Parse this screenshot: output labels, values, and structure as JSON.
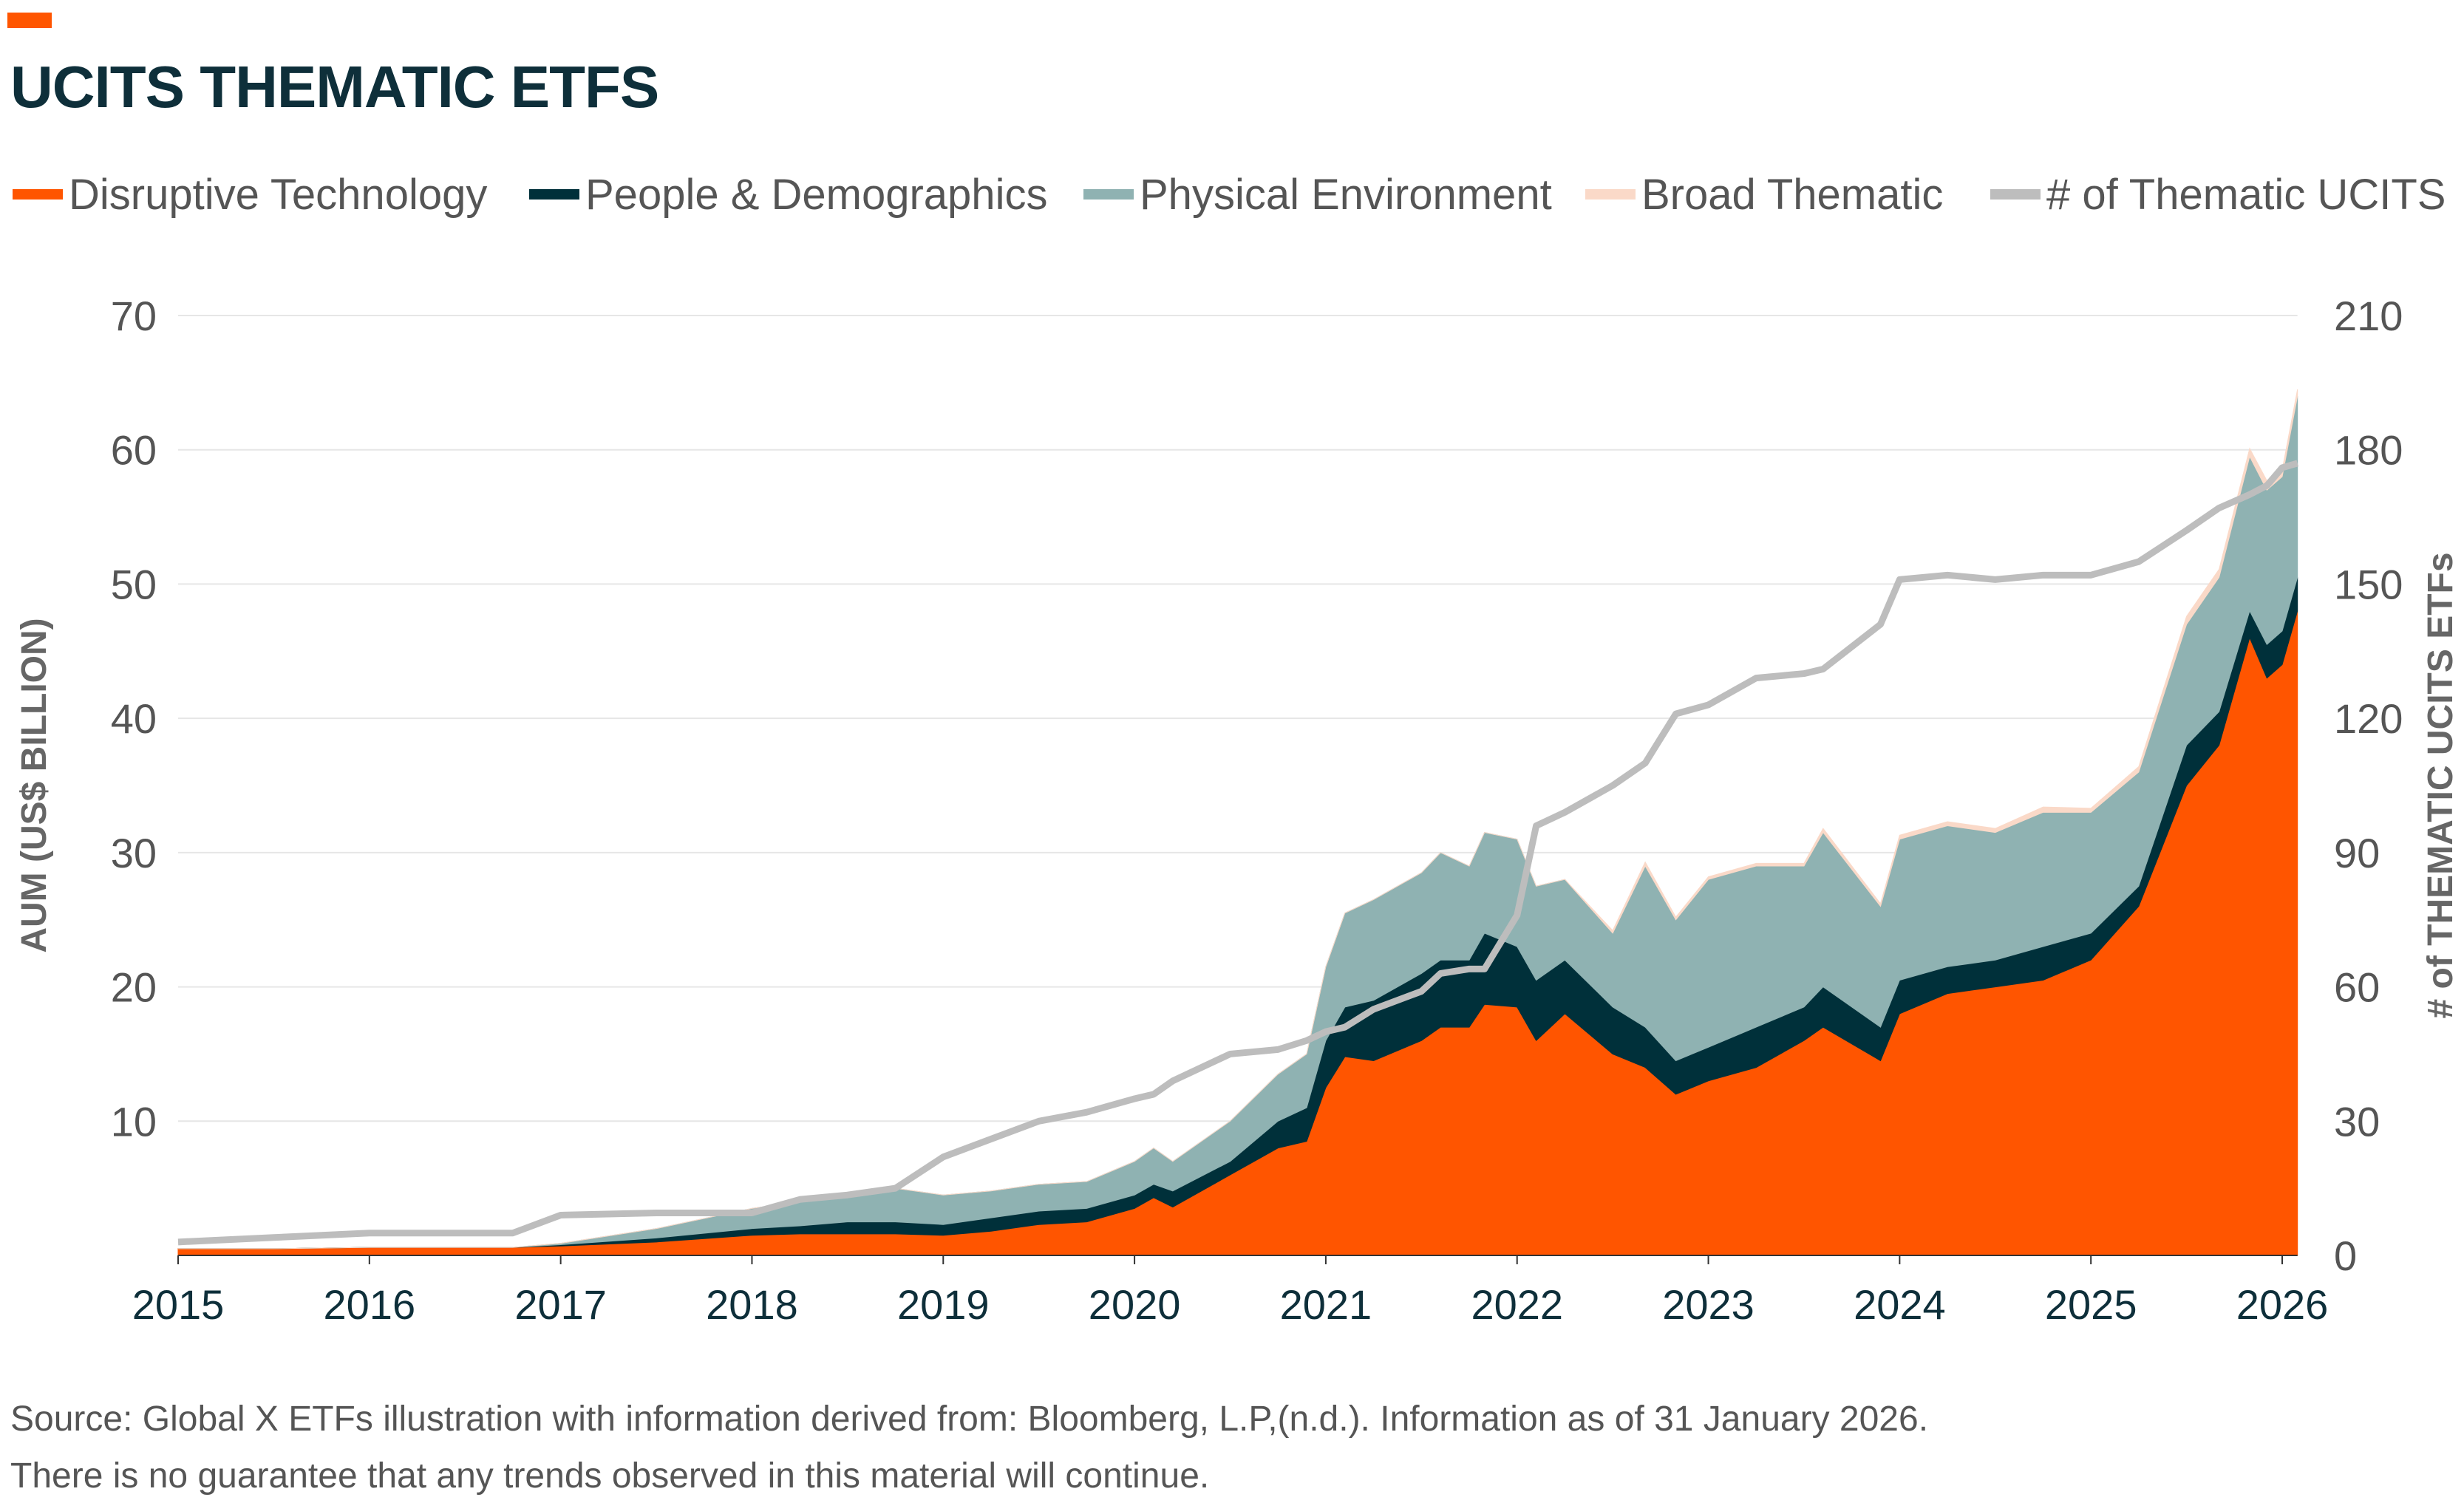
{
  "title": "UCITS THEMATIC ETFS",
  "colors": {
    "disruptive": "#FF5500",
    "people": "#00303A",
    "physical": "#8FB2B2",
    "broad": "#FAD9C8",
    "count": "#BDBDBD"
  },
  "legend": [
    "Disruptive Technology",
    "People & Demographics",
    "Physical Environment",
    "Broad Thematic",
    "# of Thematic UCITS"
  ],
  "footnotes": [
    "Source: Global X ETFs illustration with information derived from: Bloomberg, L.P,(n.d.). Information as of 31 January 2026.",
    "There is no guarantee that any trends observed in this material will continue."
  ],
  "chart_data": {
    "type": "area",
    "stacked": true,
    "title": "UCITS THEMATIC ETFS",
    "ylabel": "AUM (US$ BILLION)",
    "y2label": "# of THEMATIC UCITS ETFs",
    "ylim": [
      0,
      70
    ],
    "y2lim": [
      0,
      210
    ],
    "xlim": [
      2015,
      2026.08
    ],
    "grid": true,
    "legend_position": "top",
    "xticks": [
      "2015",
      "2016",
      "2017",
      "2018",
      "2019",
      "2020",
      "2021",
      "2022",
      "2023",
      "2024",
      "2025",
      "2026"
    ],
    "yticks": [
      "",
      "10",
      "20",
      "30",
      "40",
      "50",
      "60",
      "70"
    ],
    "y2ticks": [
      "0",
      "30",
      "60",
      "90",
      "120",
      "150",
      "180",
      "210"
    ],
    "x": [
      2015,
      2015.5,
      2016,
      2016.5,
      2016.75,
      2017,
      2017.5,
      2018,
      2018.25,
      2018.5,
      2018.75,
      2019,
      2019.25,
      2019.5,
      2019.75,
      2020,
      2020.1,
      2020.2,
      2020.5,
      2020.75,
      2020.9,
      2021,
      2021.1,
      2021.25,
      2021.5,
      2021.6,
      2021.75,
      2021.83,
      2022,
      2022.1,
      2022.25,
      2022.5,
      2022.67,
      2022.83,
      2023,
      2023.25,
      2023.5,
      2023.6,
      2023.9,
      2024,
      2024.25,
      2024.5,
      2024.75,
      2025,
      2025.25,
      2025.5,
      2025.67,
      2025.83,
      2025.92,
      2026,
      2026.08
    ],
    "series": [
      {
        "name": "Disruptive Technology",
        "axis": "left",
        "values": [
          0.5,
          0.5,
          0.6,
          0.6,
          0.6,
          0.7,
          1.0,
          1.5,
          1.6,
          1.6,
          1.6,
          1.5,
          1.8,
          2.3,
          2.5,
          3.5,
          4.3,
          3.6,
          6,
          8,
          8.5,
          12.5,
          14.8,
          14.5,
          16,
          17,
          17,
          18.7,
          18.5,
          16,
          18,
          15,
          14,
          12,
          13,
          14,
          16,
          17,
          14.5,
          18,
          19.5,
          20,
          20.5,
          22,
          26,
          35,
          38,
          46,
          43,
          44,
          48
        ]
      },
      {
        "name": "People & Demographics",
        "axis": "left",
        "values": [
          0,
          0,
          0,
          0,
          0,
          0.1,
          0.3,
          0.5,
          0.6,
          0.9,
          0.9,
          0.8,
          1.0,
          1.0,
          1.0,
          1.0,
          1.0,
          1.2,
          1,
          2,
          2.5,
          3.5,
          3.7,
          4.5,
          5,
          5,
          5,
          5.3,
          4.5,
          4.5,
          4,
          3.5,
          3,
          2.5,
          2.5,
          3,
          2.5,
          3,
          2.5,
          2.5,
          2,
          2,
          2.5,
          2,
          1.5,
          3,
          2.5,
          2,
          2.5,
          2.5,
          2.5
        ]
      },
      {
        "name": "Physical Environment",
        "axis": "left",
        "values": [
          0,
          0,
          0,
          0,
          0,
          0.1,
          0.7,
          1.5,
          1.8,
          2,
          2.5,
          2.2,
          2,
          2,
          2,
          2.5,
          2.7,
          2.2,
          3,
          3.5,
          4,
          5.5,
          7,
          7.5,
          7.5,
          8,
          7,
          7.5,
          8,
          7,
          6,
          5.5,
          12,
          10.5,
          12.5,
          12,
          10.5,
          11.5,
          9,
          10.5,
          10.5,
          9.5,
          10,
          9,
          8.5,
          9,
          10,
          11.5,
          11.5,
          11.5,
          13.5
        ]
      },
      {
        "name": "Broad Thematic",
        "axis": "left",
        "values": [
          0,
          0,
          0,
          0,
          0,
          0,
          0,
          0,
          0,
          0,
          0,
          0,
          0,
          0,
          0,
          0,
          0,
          0,
          0,
          0,
          0,
          0,
          0,
          0,
          0,
          0,
          0,
          0,
          0,
          0,
          0,
          0.2,
          0.3,
          0.2,
          0.2,
          0.2,
          0.2,
          0.3,
          0.2,
          0.3,
          0.3,
          0.3,
          0.4,
          0.3,
          0.4,
          0.6,
          0.6,
          0.6,
          0.7,
          0.5,
          0.5
        ]
      },
      {
        "name": "# of Thematic UCITS",
        "axis": "right",
        "type": "line",
        "values": [
          3,
          4,
          5,
          5,
          5,
          9,
          9.5,
          9.5,
          12.5,
          13.5,
          15,
          22,
          26,
          30,
          32,
          35,
          36,
          39,
          45,
          46,
          48,
          50,
          51,
          55,
          59,
          63,
          64,
          64,
          76,
          96,
          99,
          105,
          110,
          121,
          123,
          129,
          130,
          131,
          141,
          151,
          152,
          151,
          152,
          152,
          155,
          162,
          167,
          170,
          172,
          176,
          177
        ]
      }
    ]
  }
}
